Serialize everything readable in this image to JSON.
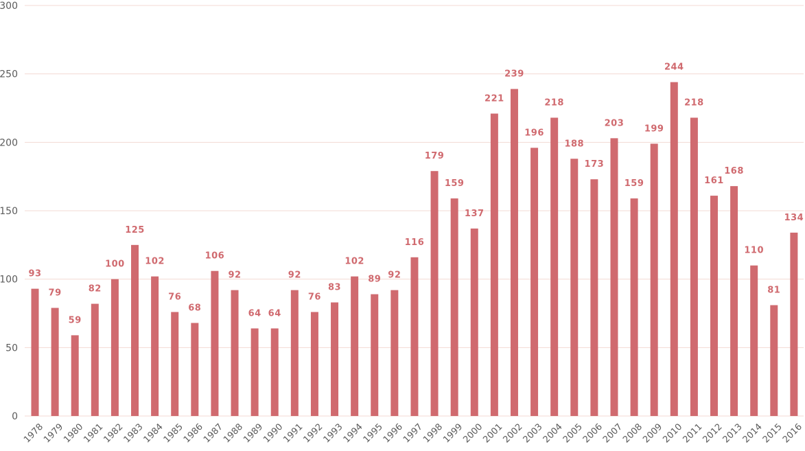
{
  "chart_data": {
    "type": "bar",
    "title": "",
    "xlabel": "",
    "ylabel": "",
    "ylim": [
      0,
      300
    ],
    "yticks": [
      0,
      50,
      100,
      150,
      200,
      250,
      300
    ],
    "grid": true,
    "bar_color": "#d06a6f",
    "categories": [
      "1978",
      "1979",
      "1980",
      "1981",
      "1982",
      "1983",
      "1984",
      "1985",
      "1986",
      "1987",
      "1988",
      "1989",
      "1990",
      "1991",
      "1992",
      "1993",
      "1994",
      "1995",
      "1996",
      "1997",
      "1998",
      "1999",
      "2000",
      "2001",
      "2002",
      "2003",
      "2004",
      "2005",
      "2006",
      "2007",
      "2008",
      "2009",
      "2010",
      "2011",
      "2012",
      "2013",
      "2014",
      "2015",
      "2016"
    ],
    "values": [
      93,
      79,
      59,
      82,
      100,
      125,
      102,
      76,
      68,
      106,
      92,
      64,
      64,
      92,
      76,
      83,
      102,
      89,
      92,
      116,
      179,
      159,
      137,
      221,
      239,
      196,
      218,
      188,
      173,
      203,
      159,
      199,
      244,
      218,
      161,
      168,
      110,
      81,
      134
    ],
    "data_labels": [
      "93",
      "79",
      "59",
      "82",
      "100",
      "125",
      "102",
      "76",
      "68",
      "106",
      "92",
      "64",
      "64",
      "92",
      "76",
      "83",
      "102",
      "89",
      "92",
      "116",
      "179",
      "159",
      "137",
      "221",
      "239",
      "196",
      "218",
      "188",
      "173",
      "203",
      "159",
      "199",
      "244",
      "218",
      "161",
      "168",
      "110",
      "81",
      "134"
    ]
  }
}
